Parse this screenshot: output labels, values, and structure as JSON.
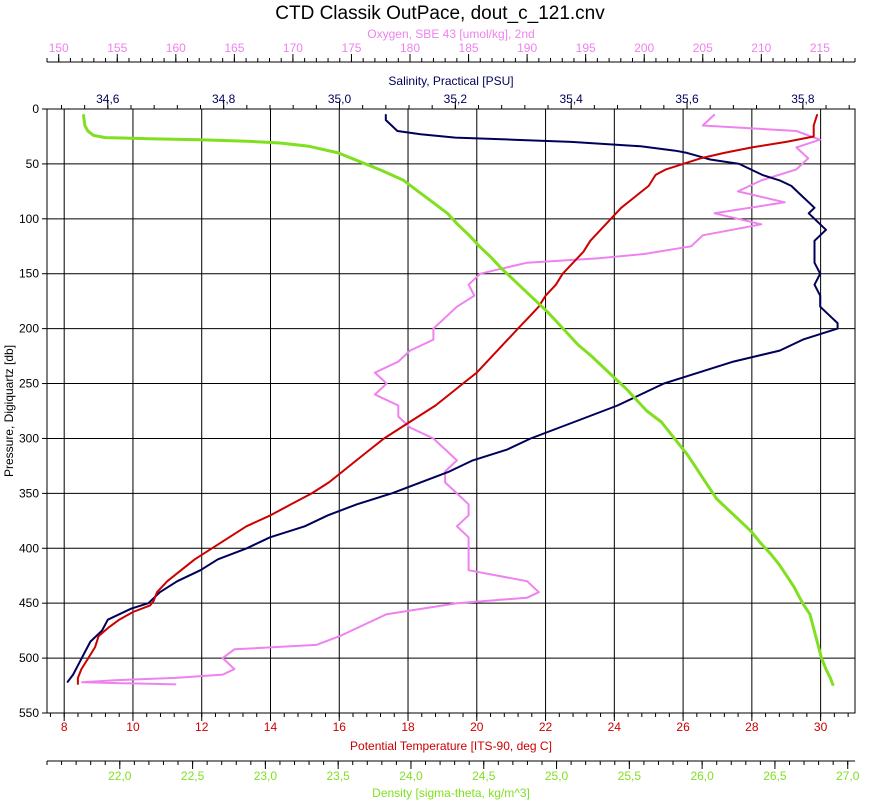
{
  "chart_data": {
    "type": "line",
    "title": "CTD Classik OutPace, dout_c_121.cnv",
    "colors": {
      "oxygen": "#ee82ee",
      "salinity": "#00005a",
      "temperature": "#cc0000",
      "density": "#80e020",
      "grid": "#000000",
      "text": "#000000"
    },
    "grid": true,
    "y_axis": {
      "label": "Pressure, Digiquartz [db]",
      "range": [
        0,
        550
      ],
      "inverted": true,
      "ticks": [
        "0",
        "50",
        "100",
        "150",
        "200",
        "250",
        "300",
        "350",
        "400",
        "450",
        "500",
        "550"
      ]
    },
    "axes": {
      "oxygen": {
        "label": "Oxygen, SBE 43 [umol/kg], 2nd",
        "position": "top-outer",
        "range": [
          149,
          218
        ],
        "ticks": [
          "150",
          "155",
          "160",
          "165",
          "170",
          "175",
          "180",
          "185",
          "190",
          "195",
          "200",
          "205",
          "210",
          "215"
        ]
      },
      "salinity": {
        "label": "Salinity, Practical [PSU]",
        "position": "top-inner",
        "range": [
          34.495,
          35.89
        ],
        "ticks": [
          "34,6",
          "34,8",
          "35,0",
          "35,2",
          "35,4",
          "35,6",
          "35,8"
        ]
      },
      "temperature": {
        "label": "Potential Temperature [ITS-90, deg C]",
        "position": "bottom-inner",
        "range": [
          7.5,
          31.0
        ],
        "ticks": [
          "8",
          "10",
          "12",
          "14",
          "16",
          "18",
          "20",
          "22",
          "24",
          "26",
          "28",
          "30"
        ]
      },
      "density": {
        "label": "Density [sigma-theta, kg/m^3]",
        "position": "bottom-outer",
        "range": [
          21.5,
          27.05
        ],
        "ticks": [
          "22,0",
          "22,5",
          "23,0",
          "23,5",
          "24,0",
          "24,5",
          "25,0",
          "25,5",
          "26,0",
          "26,5",
          "27,0"
        ]
      }
    },
    "series": [
      {
        "name": "Oxygen, SBE 43 [umol/kg], 2nd",
        "axis": "oxygen",
        "points": [
          [
            206,
            5
          ],
          [
            205,
            15
          ],
          [
            213,
            20
          ],
          [
            215,
            28
          ],
          [
            213,
            35
          ],
          [
            214,
            45
          ],
          [
            213,
            55
          ],
          [
            210,
            65
          ],
          [
            208,
            75
          ],
          [
            212,
            85
          ],
          [
            206,
            95
          ],
          [
            210,
            105
          ],
          [
            205,
            115
          ],
          [
            204,
            125
          ],
          [
            200,
            132
          ],
          [
            196,
            136
          ],
          [
            190,
            140
          ],
          [
            188,
            145
          ],
          [
            186,
            150
          ],
          [
            185,
            160
          ],
          [
            185.5,
            170
          ],
          [
            184,
            180
          ],
          [
            183,
            190
          ],
          [
            182,
            200
          ],
          [
            182,
            210
          ],
          [
            180,
            220
          ],
          [
            179,
            230
          ],
          [
            177,
            240
          ],
          [
            178,
            250
          ],
          [
            177,
            260
          ],
          [
            179,
            270
          ],
          [
            179,
            280
          ],
          [
            180,
            290
          ],
          [
            182,
            300
          ],
          [
            183,
            310
          ],
          [
            184,
            320
          ],
          [
            183,
            330
          ],
          [
            183,
            340
          ],
          [
            184,
            350
          ],
          [
            185,
            360
          ],
          [
            185,
            370
          ],
          [
            184,
            380
          ],
          [
            185,
            390
          ],
          [
            185,
            400
          ],
          [
            185,
            410
          ],
          [
            185,
            420
          ],
          [
            190,
            430
          ],
          [
            191,
            440
          ],
          [
            190,
            445
          ],
          [
            184,
            450
          ],
          [
            178,
            460
          ],
          [
            176,
            470
          ],
          [
            174,
            480
          ],
          [
            172,
            488
          ],
          [
            165,
            492
          ],
          [
            164,
            500
          ],
          [
            165,
            510
          ],
          [
            164,
            515
          ],
          [
            160,
            518
          ],
          [
            155,
            520
          ],
          [
            152,
            522
          ],
          [
            160,
            524
          ]
        ]
      },
      {
        "name": "Salinity, Practical [PSU]",
        "axis": "salinity",
        "points": [
          [
            35.08,
            5
          ],
          [
            35.08,
            10
          ],
          [
            35.09,
            15
          ],
          [
            35.1,
            20
          ],
          [
            35.14,
            23
          ],
          [
            35.2,
            26
          ],
          [
            35.3,
            28
          ],
          [
            35.4,
            30
          ],
          [
            35.52,
            34
          ],
          [
            35.58,
            38
          ],
          [
            35.6,
            40
          ],
          [
            35.62,
            43
          ],
          [
            35.64,
            46
          ],
          [
            35.69,
            50
          ],
          [
            35.71,
            55
          ],
          [
            35.73,
            60
          ],
          [
            35.76,
            65
          ],
          [
            35.78,
            70
          ],
          [
            35.79,
            75
          ],
          [
            35.8,
            80
          ],
          [
            35.81,
            85
          ],
          [
            35.82,
            90
          ],
          [
            35.81,
            95
          ],
          [
            35.82,
            100
          ],
          [
            35.83,
            105
          ],
          [
            35.84,
            110
          ],
          [
            35.83,
            115
          ],
          [
            35.82,
            120
          ],
          [
            35.82,
            130
          ],
          [
            35.82,
            140
          ],
          [
            35.83,
            150
          ],
          [
            35.82,
            160
          ],
          [
            35.83,
            170
          ],
          [
            35.83,
            180
          ],
          [
            35.85,
            190
          ],
          [
            35.86,
            195
          ],
          [
            35.86,
            200
          ],
          [
            35.83,
            205
          ],
          [
            35.8,
            210
          ],
          [
            35.78,
            215
          ],
          [
            35.76,
            220
          ],
          [
            35.72,
            225
          ],
          [
            35.68,
            230
          ],
          [
            35.62,
            240
          ],
          [
            35.56,
            250
          ],
          [
            35.52,
            260
          ],
          [
            35.48,
            270
          ],
          [
            35.43,
            280
          ],
          [
            35.38,
            290
          ],
          [
            35.33,
            300
          ],
          [
            35.29,
            310
          ],
          [
            35.23,
            320
          ],
          [
            35.19,
            330
          ],
          [
            35.14,
            340
          ],
          [
            35.09,
            350
          ],
          [
            35.03,
            360
          ],
          [
            34.98,
            370
          ],
          [
            34.94,
            380
          ],
          [
            34.88,
            390
          ],
          [
            34.84,
            400
          ],
          [
            34.79,
            410
          ],
          [
            34.76,
            420
          ],
          [
            34.72,
            430
          ],
          [
            34.69,
            440
          ],
          [
            34.67,
            450
          ],
          [
            34.64,
            455
          ],
          [
            34.6,
            465
          ],
          [
            34.59,
            475
          ],
          [
            34.57,
            485
          ],
          [
            34.56,
            495
          ],
          [
            34.55,
            505
          ],
          [
            34.54,
            515
          ],
          [
            34.53,
            522
          ]
        ]
      },
      {
        "name": "Potential Temperature [ITS-90, deg C]",
        "axis": "temperature",
        "points": [
          [
            29.9,
            5
          ],
          [
            29.8,
            15
          ],
          [
            29.8,
            25
          ],
          [
            29.0,
            30
          ],
          [
            28.0,
            35
          ],
          [
            27.2,
            40
          ],
          [
            26.5,
            45
          ],
          [
            26.0,
            50
          ],
          [
            25.5,
            55
          ],
          [
            25.2,
            60
          ],
          [
            25.0,
            70
          ],
          [
            24.6,
            80
          ],
          [
            24.2,
            90
          ],
          [
            23.9,
            100
          ],
          [
            23.6,
            110
          ],
          [
            23.3,
            120
          ],
          [
            23.1,
            130
          ],
          [
            22.8,
            140
          ],
          [
            22.5,
            150
          ],
          [
            22.3,
            160
          ],
          [
            22.0,
            170
          ],
          [
            21.8,
            180
          ],
          [
            21.5,
            190
          ],
          [
            21.2,
            200
          ],
          [
            20.9,
            210
          ],
          [
            20.6,
            220
          ],
          [
            20.3,
            230
          ],
          [
            20.0,
            240
          ],
          [
            19.6,
            250
          ],
          [
            19.2,
            260
          ],
          [
            18.8,
            270
          ],
          [
            18.3,
            280
          ],
          [
            17.8,
            290
          ],
          [
            17.3,
            300
          ],
          [
            16.9,
            310
          ],
          [
            16.5,
            320
          ],
          [
            16.1,
            330
          ],
          [
            15.7,
            340
          ],
          [
            15.2,
            350
          ],
          [
            14.6,
            360
          ],
          [
            14.0,
            370
          ],
          [
            13.3,
            380
          ],
          [
            12.8,
            390
          ],
          [
            12.3,
            400
          ],
          [
            11.8,
            410
          ],
          [
            11.4,
            420
          ],
          [
            11.0,
            430
          ],
          [
            10.7,
            440
          ],
          [
            10.6,
            448
          ],
          [
            10.5,
            452
          ],
          [
            10.0,
            458
          ],
          [
            9.6,
            465
          ],
          [
            9.3,
            472
          ],
          [
            9.0,
            480
          ],
          [
            8.9,
            490
          ],
          [
            8.7,
            500
          ],
          [
            8.5,
            510
          ],
          [
            8.4,
            518
          ],
          [
            8.4,
            524
          ]
        ]
      },
      {
        "name": "Density [sigma-theta, kg/m^3]",
        "axis": "density",
        "points": [
          [
            21.75,
            5
          ],
          [
            21.76,
            15
          ],
          [
            21.78,
            20
          ],
          [
            21.82,
            24
          ],
          [
            21.9,
            26
          ],
          [
            22.2,
            27
          ],
          [
            22.55,
            28
          ],
          [
            22.9,
            29.5
          ],
          [
            23.1,
            31
          ],
          [
            23.3,
            34
          ],
          [
            23.5,
            40
          ],
          [
            23.65,
            48
          ],
          [
            23.8,
            56
          ],
          [
            23.95,
            65
          ],
          [
            24.05,
            75
          ],
          [
            24.15,
            85
          ],
          [
            24.25,
            95
          ],
          [
            24.32,
            105
          ],
          [
            24.4,
            115
          ],
          [
            24.47,
            125
          ],
          [
            24.55,
            135
          ],
          [
            24.62,
            145
          ],
          [
            24.7,
            155
          ],
          [
            24.78,
            165
          ],
          [
            24.86,
            175
          ],
          [
            24.94,
            185
          ],
          [
            25.01,
            195
          ],
          [
            25.08,
            205
          ],
          [
            25.15,
            215
          ],
          [
            25.24,
            225
          ],
          [
            25.32,
            235
          ],
          [
            25.4,
            245
          ],
          [
            25.48,
            255
          ],
          [
            25.55,
            265
          ],
          [
            25.62,
            275
          ],
          [
            25.72,
            285
          ],
          [
            25.78,
            295
          ],
          [
            25.84,
            305
          ],
          [
            25.9,
            315
          ],
          [
            25.95,
            325
          ],
          [
            26.0,
            335
          ],
          [
            26.05,
            345
          ],
          [
            26.1,
            355
          ],
          [
            26.18,
            365
          ],
          [
            26.26,
            375
          ],
          [
            26.34,
            385
          ],
          [
            26.4,
            395
          ],
          [
            26.47,
            405
          ],
          [
            26.53,
            415
          ],
          [
            26.58,
            425
          ],
          [
            26.63,
            435
          ],
          [
            26.67,
            445
          ],
          [
            26.7,
            452
          ],
          [
            26.74,
            460
          ],
          [
            26.76,
            470
          ],
          [
            26.78,
            480
          ],
          [
            26.8,
            490
          ],
          [
            26.82,
            500
          ],
          [
            26.85,
            510
          ],
          [
            26.88,
            518
          ],
          [
            26.9,
            525
          ]
        ]
      }
    ]
  }
}
